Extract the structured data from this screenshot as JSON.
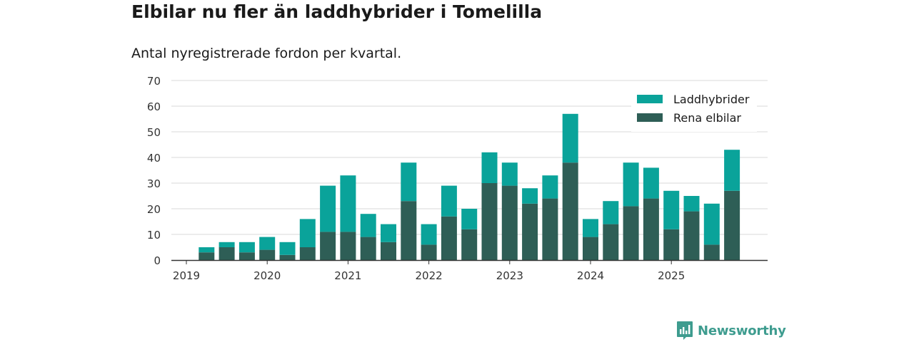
{
  "header": {
    "title": "Elbilar nu fler än laddhybrider i Tomelilla",
    "subtitle": "Antal nyregistrerade fordon per kvartal."
  },
  "brand": {
    "name": "Newsworthy",
    "color": "#3e9c8f"
  },
  "chart_data": {
    "type": "bar",
    "stacked": true,
    "title": "Elbilar nu fler än laddhybrider i Tomelilla",
    "subtitle": "Antal nyregistrerade fordon per kvartal.",
    "xlabel": "",
    "ylabel": "",
    "ylim": [
      0,
      70
    ],
    "yticks": [
      0,
      10,
      20,
      30,
      40,
      50,
      60,
      70
    ],
    "xtick_labels": [
      "2019",
      "2020",
      "2021",
      "2022",
      "2023",
      "2024",
      "2025"
    ],
    "grid": true,
    "legend_position": "top-right",
    "categories": [
      "2019 Q1",
      "2019 Q2",
      "2019 Q3",
      "2019 Q4",
      "2020 Q1",
      "2020 Q2",
      "2020 Q3",
      "2020 Q4",
      "2021 Q1",
      "2021 Q2",
      "2021 Q3",
      "2021 Q4",
      "2022 Q1",
      "2022 Q2",
      "2022 Q3",
      "2022 Q4",
      "2023 Q1",
      "2023 Q2",
      "2023 Q3",
      "2023 Q4",
      "2024 Q1",
      "2024 Q2",
      "2024 Q3",
      "2024 Q4",
      "2025 Q1",
      "2025 Q2",
      "2025 Q3",
      "2025 Q4"
    ],
    "series": [
      {
        "name": "Rena elbilar",
        "color": "#2e5e56",
        "values": [
          0,
          3,
          5,
          3,
          4,
          2,
          5,
          11,
          11,
          9,
          7,
          23,
          6,
          17,
          12,
          30,
          29,
          22,
          24,
          38,
          9,
          14,
          21,
          24,
          12,
          19,
          6,
          27
        ]
      },
      {
        "name": "Laddhybrider",
        "color": "#0aa39a",
        "values": [
          0,
          2,
          2,
          4,
          5,
          5,
          11,
          18,
          22,
          9,
          7,
          15,
          8,
          12,
          8,
          12,
          9,
          6,
          9,
          19,
          7,
          9,
          17,
          12,
          15,
          6,
          16,
          16
        ]
      }
    ],
    "legend": [
      "Laddhybrider",
      "Rena elbilar"
    ]
  }
}
